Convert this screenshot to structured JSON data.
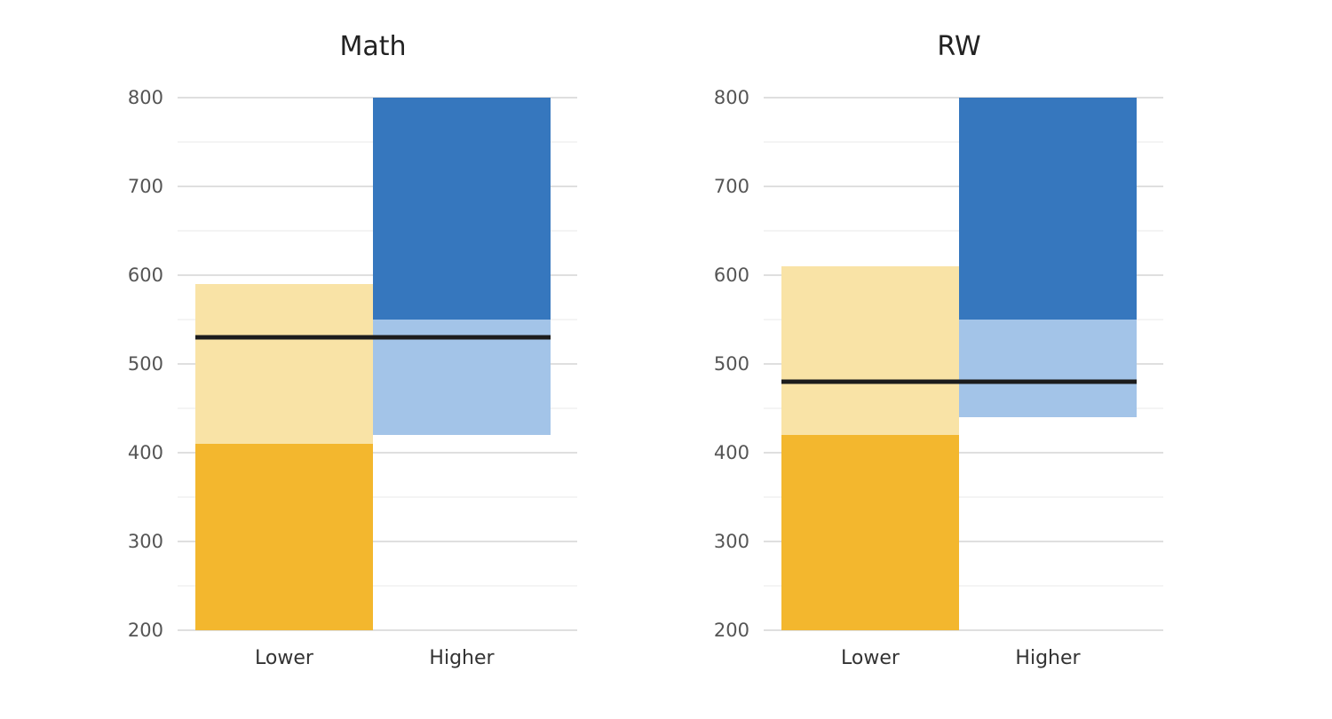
{
  "chart_data": [
    {
      "type": "bar",
      "title": "Math",
      "categories": [
        "Lower",
        "Higher"
      ],
      "ylim": [
        200,
        800
      ],
      "yticks": [
        "200",
        "300",
        "400",
        "500",
        "600",
        "700",
        "800"
      ],
      "grid": true,
      "series": [
        {
          "category": "Lower",
          "role": "solid",
          "from": 200,
          "to": 410,
          "color": "#F3B72E"
        },
        {
          "category": "Lower",
          "role": "light",
          "from": 410,
          "to": 590,
          "color": "#F9E3A6"
        },
        {
          "category": "Higher",
          "role": "light",
          "from": 420,
          "to": 550,
          "color": "#A3C4E8"
        },
        {
          "category": "Higher",
          "role": "solid",
          "from": 550,
          "to": 800,
          "color": "#3677BE"
        }
      ],
      "threshold": 530
    },
    {
      "type": "bar",
      "title": "RW",
      "categories": [
        "Lower",
        "Higher"
      ],
      "ylim": [
        200,
        800
      ],
      "yticks": [
        "200",
        "300",
        "400",
        "500",
        "600",
        "700",
        "800"
      ],
      "grid": true,
      "series": [
        {
          "category": "Lower",
          "role": "solid",
          "from": 200,
          "to": 420,
          "color": "#F3B72E"
        },
        {
          "category": "Lower",
          "role": "light",
          "from": 420,
          "to": 610,
          "color": "#F9E3A6"
        },
        {
          "category": "Higher",
          "role": "light",
          "from": 440,
          "to": 550,
          "color": "#A3C4E8"
        },
        {
          "category": "Higher",
          "role": "solid",
          "from": 550,
          "to": 800,
          "color": "#3677BE"
        }
      ],
      "threshold": 480
    }
  ]
}
